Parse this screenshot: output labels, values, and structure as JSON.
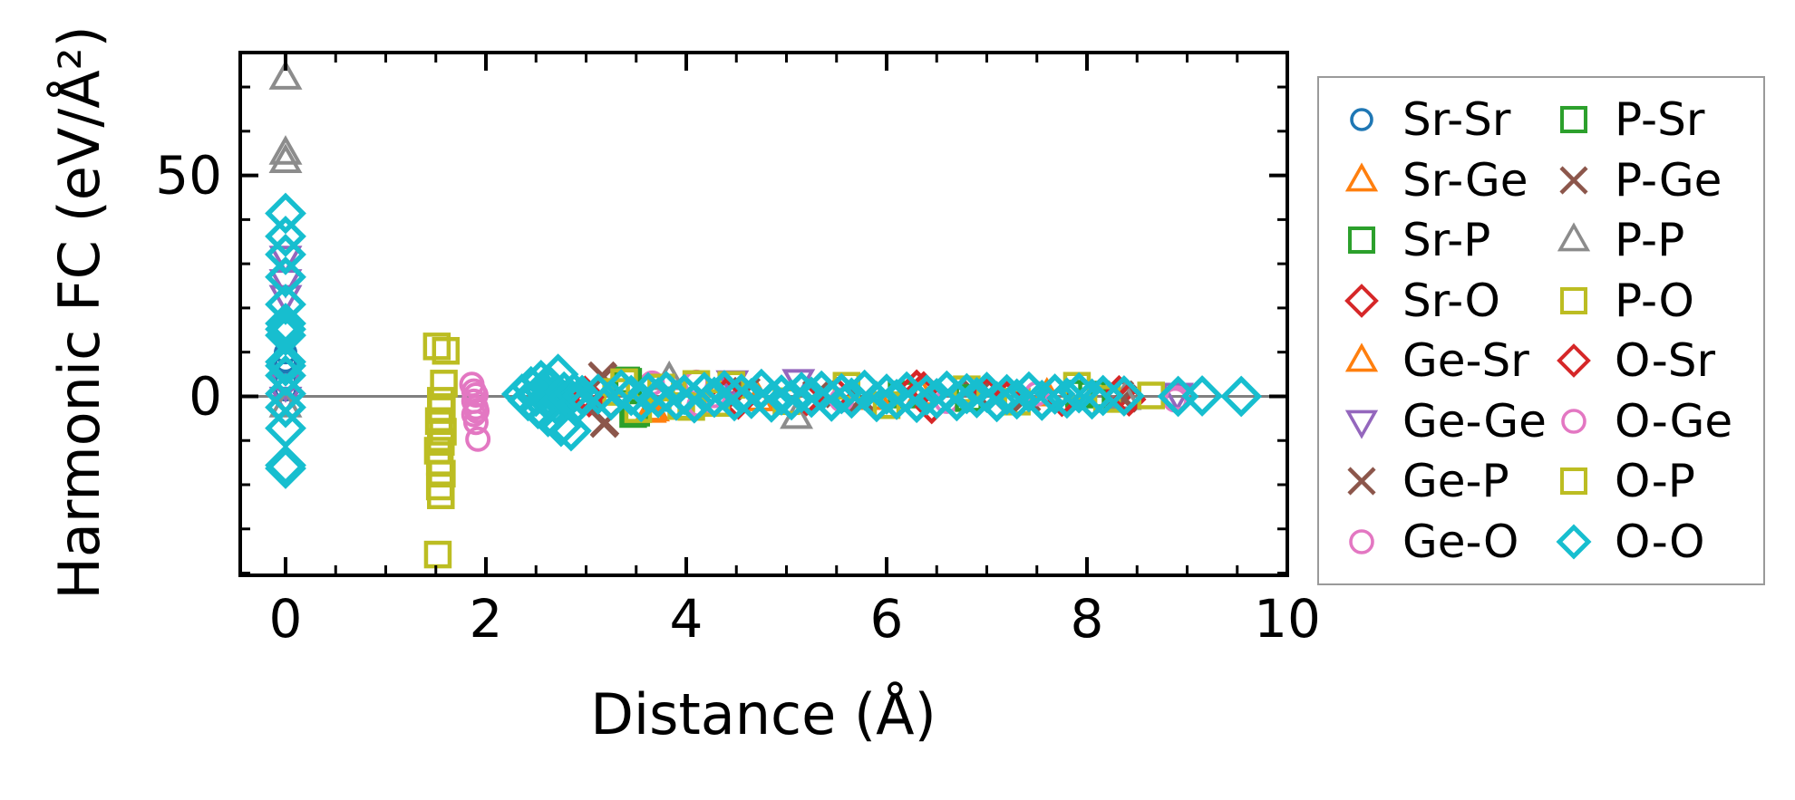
{
  "axes": {
    "x_label": "Distance (Å)",
    "y_label": "Harmonic FC (eV/Å²)"
  },
  "chart_data": {
    "type": "scatter",
    "title": "",
    "xlabel": "Distance (Å)",
    "ylabel": "Harmonic FC (eV/Å²)",
    "xlim": [
      -0.4525,
      10.0
    ],
    "ylim": [
      -40.5,
      77.8
    ],
    "x_major_ticks": [
      0,
      2,
      4,
      6,
      8,
      10
    ],
    "x_minor_step": 0.5,
    "y_major_ticks": [
      0,
      50
    ],
    "y_minor_step": 10,
    "grid": false,
    "zero_line": {
      "y": 0,
      "color": "#808080"
    },
    "legend_position": "outside-right",
    "series": [
      {
        "name": "Sr-Sr",
        "marker": "circle",
        "color": "#1f77b4",
        "size": 11,
        "stroke_width": 4,
        "points": [
          [
            0,
            9.9
          ],
          [
            0,
            7.9
          ],
          [
            0,
            3.3
          ],
          [
            0,
            1.5
          ]
        ]
      },
      {
        "name": "Sr-Ge",
        "marker": "triangle-up",
        "color": "#ff7f0e",
        "size": 16,
        "stroke_width": 4,
        "points": [
          [
            3.64,
            -3.4
          ],
          [
            4.72,
            -0.8
          ],
          [
            6.35,
            0.4
          ]
        ]
      },
      {
        "name": "Sr-P",
        "marker": "square",
        "color": "#2ca02c",
        "size": 13,
        "stroke_width": 4.5,
        "points": [
          [
            3.4,
            3.6
          ],
          [
            3.47,
            -4.0
          ],
          [
            6.15,
            0.4
          ],
          [
            7.92,
            0.6
          ]
        ]
      },
      {
        "name": "Sr-O",
        "marker": "diamond",
        "color": "#d62728",
        "size": 16,
        "stroke_width": 4.5,
        "points": [
          [
            2.99,
            0.8
          ],
          [
            3.03,
            -0.9
          ],
          [
            4.36,
            1.2
          ],
          [
            4.52,
            -1.4
          ],
          [
            5.5,
            0.6
          ],
          [
            6.3,
            2.2
          ],
          [
            6.45,
            -2.4
          ],
          [
            7.2,
            -0.4
          ],
          [
            8.32,
            0.9
          ]
        ]
      },
      {
        "name": "Ge-Sr",
        "marker": "triangle-up",
        "color": "#ff7f0e",
        "size": 16,
        "stroke_width": 4,
        "points": [
          [
            3.67,
            -3.1
          ],
          [
            5.9,
            -0.5
          ],
          [
            7.6,
            0.3
          ]
        ]
      },
      {
        "name": "Ge-Ge",
        "marker": "triangle-down",
        "color": "#9467bd",
        "size": 16,
        "stroke_width": 4,
        "points": [
          [
            0,
            31.5
          ],
          [
            0,
            26.2
          ],
          [
            0,
            22.6
          ],
          [
            0,
            2.6
          ],
          [
            0,
            -0.4
          ],
          [
            4.46,
            3.3
          ],
          [
            5.12,
            3.6
          ],
          [
            8.9,
            0.5
          ]
        ]
      },
      {
        "name": "Ge-P",
        "marker": "x",
        "color": "#8c564b",
        "size": 14,
        "stroke_width": 5,
        "points": [
          [
            3.16,
            4.7
          ],
          [
            3.18,
            -6.2
          ],
          [
            4.6,
            1.2
          ],
          [
            5.75,
            -0.6
          ],
          [
            6.9,
            0.4
          ],
          [
            8.33,
            0.4
          ]
        ]
      },
      {
        "name": "Ge-O",
        "marker": "circle",
        "color": "#e377c2",
        "size": 12,
        "stroke_width": 4,
        "points": [
          [
            1.86,
            2.7
          ],
          [
            1.88,
            1.2
          ],
          [
            1.9,
            0.3
          ],
          [
            1.88,
            -1.1
          ],
          [
            1.9,
            -2.5
          ],
          [
            1.92,
            -9.7
          ],
          [
            3.66,
            3.0
          ],
          [
            4.1,
            3.2
          ],
          [
            6.6,
            -1.1
          ],
          [
            8.88,
            -0.8
          ]
        ]
      },
      {
        "name": "P-Sr",
        "marker": "square",
        "color": "#2ca02c",
        "size": 13,
        "stroke_width": 4.5,
        "points": [
          [
            3.42,
            3.3
          ],
          [
            3.5,
            -3.7
          ],
          [
            6.82,
            -0.4
          ],
          [
            8.05,
            0.4
          ]
        ]
      },
      {
        "name": "P-Ge",
        "marker": "x",
        "color": "#8c564b",
        "size": 14,
        "stroke_width": 5,
        "points": [
          [
            3.17,
            4.4
          ],
          [
            3.19,
            -5.9
          ],
          [
            5.3,
            0.5
          ],
          [
            7.4,
            -0.4
          ],
          [
            8.36,
            -0.5
          ]
        ]
      },
      {
        "name": "P-P",
        "marker": "triangle-up",
        "color": "#8c8c8c",
        "size": 16,
        "stroke_width": 4,
        "points": [
          [
            0,
            72.0
          ],
          [
            0,
            55.0
          ],
          [
            0,
            53.1
          ],
          [
            0,
            -2.2
          ],
          [
            3.83,
            4.0
          ],
          [
            5.1,
            -4.8
          ],
          [
            8.38,
            -0.5
          ]
        ]
      },
      {
        "name": "P-O",
        "marker": "square",
        "color": "#bcbd22",
        "size": 13,
        "stroke_width": 4.5,
        "points": [
          [
            1.51,
            11.3
          ],
          [
            1.6,
            10.3
          ],
          [
            1.58,
            2.9
          ],
          [
            1.55,
            -1.0
          ],
          [
            1.56,
            -3.1
          ],
          [
            1.53,
            -5.6
          ],
          [
            1.57,
            -8.0
          ],
          [
            1.55,
            -10.3
          ],
          [
            1.52,
            -12.3
          ],
          [
            3.3,
            1.0
          ],
          [
            3.38,
            3.2
          ],
          [
            3.75,
            2.0
          ],
          [
            3.95,
            -2.2
          ],
          [
            4.1,
            2.8
          ],
          [
            4.45,
            2.6
          ],
          [
            5.6,
            2.4
          ],
          [
            6.0,
            -2.0
          ],
          [
            7.3,
            -1.2
          ],
          [
            8.2,
            -0.6
          ]
        ]
      },
      {
        "name": "O-Sr",
        "marker": "diamond",
        "color": "#d62728",
        "size": 16,
        "stroke_width": 4.5,
        "points": [
          [
            3.01,
            -0.2
          ],
          [
            4.4,
            0.4
          ],
          [
            5.2,
            -0.6
          ],
          [
            6.37,
            1.8
          ],
          [
            7.0,
            0.5
          ],
          [
            7.75,
            -0.8
          ],
          [
            8.42,
            -0.7
          ]
        ]
      },
      {
        "name": "O-Ge",
        "marker": "circle",
        "color": "#e377c2",
        "size": 12,
        "stroke_width": 4,
        "points": [
          [
            1.88,
            -4.1
          ],
          [
            1.9,
            -5.9
          ],
          [
            1.91,
            -3.3
          ],
          [
            4.13,
            -1.9
          ],
          [
            4.28,
            0.2
          ],
          [
            5.55,
            -0.8
          ],
          [
            7.5,
            0.6
          ],
          [
            8.9,
            -0.4
          ]
        ]
      },
      {
        "name": "O-P",
        "marker": "square",
        "color": "#bcbd22",
        "size": 13,
        "stroke_width": 4.5,
        "points": [
          [
            1.54,
            -14.8
          ],
          [
            1.56,
            -17.5
          ],
          [
            1.54,
            -20.4
          ],
          [
            1.55,
            -22.4
          ],
          [
            1.52,
            -35.8
          ],
          [
            3.52,
            -2.9
          ],
          [
            4.05,
            -2.4
          ],
          [
            4.3,
            -1.5
          ],
          [
            5.0,
            -1.1
          ],
          [
            6.8,
            1.6
          ],
          [
            7.9,
            2.4
          ],
          [
            8.64,
            0.2
          ]
        ]
      },
      {
        "name": "O-O",
        "marker": "diamond",
        "color": "#17becf",
        "size": 19,
        "stroke_width": 5.5,
        "points": [
          [
            0,
            41.4
          ],
          [
            0,
            36.2
          ],
          [
            0,
            32.1
          ],
          [
            0,
            27.0
          ],
          [
            0,
            20.8
          ],
          [
            0,
            16.5
          ],
          [
            0,
            15.2
          ],
          [
            0,
            13.8
          ],
          [
            0,
            7.8
          ],
          [
            0,
            6.9
          ],
          [
            0,
            4.7
          ],
          [
            0,
            0.6
          ],
          [
            0,
            -2.5
          ],
          [
            0,
            -7.2
          ],
          [
            0,
            -15.6
          ],
          [
            0,
            -16.3
          ],
          [
            2.36,
            0.5
          ],
          [
            2.42,
            -1.0
          ],
          [
            2.45,
            2.2
          ],
          [
            2.5,
            0.0
          ],
          [
            2.52,
            -2.8
          ],
          [
            2.55,
            3.6
          ],
          [
            2.58,
            1.2
          ],
          [
            2.6,
            -0.6
          ],
          [
            2.62,
            -4.6
          ],
          [
            2.65,
            2.0
          ],
          [
            2.68,
            0.3
          ],
          [
            2.7,
            -1.8
          ],
          [
            2.72,
            5.0
          ],
          [
            2.75,
            -6.8
          ],
          [
            2.78,
            1.0
          ],
          [
            2.82,
            -0.4
          ],
          [
            2.85,
            -7.8
          ],
          [
            2.88,
            0.8
          ],
          [
            2.92,
            -1.4
          ],
          [
            2.96,
            0.2
          ],
          [
            3.12,
            0.5
          ],
          [
            3.25,
            -0.8
          ],
          [
            3.35,
            1.5
          ],
          [
            3.45,
            0.2
          ],
          [
            3.55,
            -1.2
          ],
          [
            3.62,
            0.8
          ],
          [
            3.72,
            -0.3
          ],
          [
            3.8,
            1.1
          ],
          [
            3.9,
            -0.9
          ],
          [
            3.98,
            0.4
          ],
          [
            4.08,
            -1.5
          ],
          [
            4.18,
            0.9
          ],
          [
            4.28,
            -0.2
          ],
          [
            4.38,
            1.3
          ],
          [
            4.48,
            -1.0
          ],
          [
            4.55,
            0.5
          ],
          [
            4.65,
            -0.5
          ],
          [
            4.75,
            1.6
          ],
          [
            4.85,
            -1.3
          ],
          [
            4.95,
            0.3
          ],
          [
            5.05,
            -0.8
          ],
          [
            5.15,
            0.9
          ],
          [
            5.25,
            -0.2
          ],
          [
            5.35,
            1.2
          ],
          [
            5.45,
            -1.1
          ],
          [
            5.55,
            0.6
          ],
          [
            5.65,
            -0.4
          ],
          [
            5.78,
            1.4
          ],
          [
            5.9,
            -1.2
          ],
          [
            6.0,
            0.5
          ],
          [
            6.1,
            -0.7
          ],
          [
            6.2,
            1.0
          ],
          [
            6.3,
            -1.4
          ],
          [
            6.4,
            0.3
          ],
          [
            6.5,
            -0.5
          ],
          [
            6.6,
            1.2
          ],
          [
            6.7,
            -1.0
          ],
          [
            6.8,
            0.6
          ],
          [
            6.9,
            -0.3
          ],
          [
            7.0,
            0.9
          ],
          [
            7.1,
            -1.2
          ],
          [
            7.2,
            0.4
          ],
          [
            7.3,
            -0.6
          ],
          [
            7.42,
            1.0
          ],
          [
            7.55,
            -0.9
          ],
          [
            7.68,
            0.5
          ],
          [
            7.8,
            -0.4
          ],
          [
            7.92,
            0.8
          ],
          [
            8.05,
            -0.6
          ],
          [
            8.16,
            0.2
          ],
          [
            8.37,
            0.1
          ],
          [
            8.91,
            0.0
          ],
          [
            9.15,
            0.1
          ],
          [
            9.54,
            0.0
          ]
        ]
      }
    ]
  },
  "legend": {
    "columns": [
      [
        "Sr-Sr",
        "Sr-Ge",
        "Sr-P",
        "Sr-O",
        "Ge-Sr",
        "Ge-Ge",
        "Ge-P",
        "Ge-O"
      ],
      [
        "P-Sr",
        "P-Ge",
        "P-P",
        "P-O",
        "O-Sr",
        "O-Ge",
        "O-P",
        "O-O"
      ]
    ]
  }
}
